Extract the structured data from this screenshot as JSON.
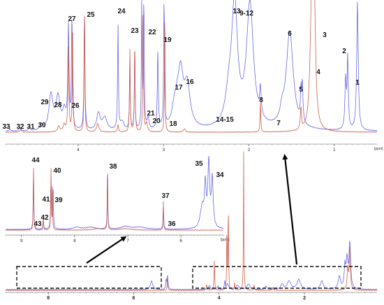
{
  "chart_data": [
    {
      "panel": "top",
      "type": "line",
      "x_unit": "[ppm]",
      "x_range": [
        4.85,
        0.5
      ],
      "x_ticks": [
        {
          "value": 4,
          "label": "4"
        },
        {
          "value": 3,
          "label": "3"
        },
        {
          "value": 2,
          "label": "2"
        },
        {
          "value": 1,
          "label": "1"
        }
      ],
      "series_colors": {
        "blue": "#6a6ae8",
        "red": "#d2614a"
      },
      "peak_labels": [
        {
          "label": "1",
          "ppm": 0.88
        },
        {
          "label": "2",
          "ppm": 0.99
        },
        {
          "label": "3",
          "ppm": 1.3
        },
        {
          "label": "4",
          "ppm": 1.33
        },
        {
          "label": "5",
          "ppm": 1.49
        },
        {
          "label": "6",
          "ppm": 1.6
        },
        {
          "label": "7",
          "ppm": 1.73
        },
        {
          "label": "8",
          "ppm": 1.95
        },
        {
          "label": "9-12",
          "ppm": 2.08
        },
        {
          "label": "13",
          "ppm": 2.3
        },
        {
          "label": "14-15",
          "ppm": 2.5
        },
        {
          "label": "16",
          "ppm": 2.73
        },
        {
          "label": "17",
          "ppm": 2.8
        },
        {
          "label": "18",
          "ppm": 2.92
        },
        {
          "label": "19",
          "ppm": 3.03
        },
        {
          "label": "20",
          "ppm": 3.13
        },
        {
          "label": "21",
          "ppm": 3.2
        },
        {
          "label": "22",
          "ppm": 3.24
        },
        {
          "label": "23",
          "ppm": 3.45
        },
        {
          "label": "24",
          "ppm": 3.55
        },
        {
          "label": "25",
          "ppm": 3.9
        },
        {
          "label": "26",
          "ppm": 4.05
        },
        {
          "label": "27",
          "ppm": 4.1
        },
        {
          "label": "28",
          "ppm": 4.3
        },
        {
          "label": "29",
          "ppm": 4.36
        },
        {
          "label": "30",
          "ppm": 4.5
        },
        {
          "label": "31",
          "ppm": 4.64
        },
        {
          "label": "32",
          "ppm": 4.72
        },
        {
          "label": "33",
          "ppm": 4.82
        }
      ]
    },
    {
      "panel": "middle",
      "type": "line",
      "x_unit": "[ppm]",
      "x_range": [
        9.3,
        5.2
      ],
      "x_ticks": [
        {
          "value": 9,
          "label": "9"
        },
        {
          "value": 8,
          "label": "8"
        },
        {
          "value": 7,
          "label": "7"
        },
        {
          "value": 6,
          "label": "6"
        }
      ],
      "series_colors": {
        "blue": "#6a6ae8",
        "red": "#d2614a"
      },
      "peak_labels": [
        {
          "label": "34",
          "ppm": 5.6
        },
        {
          "label": "35",
          "ppm": 5.7
        },
        {
          "label": "36",
          "ppm": 6.0
        },
        {
          "label": "37",
          "ppm": 6.05
        },
        {
          "label": "38",
          "ppm": 7.4
        },
        {
          "label": "39",
          "ppm": 8.4
        },
        {
          "label": "40",
          "ppm": 8.55
        },
        {
          "label": "41",
          "ppm": 8.55
        },
        {
          "label": "42",
          "ppm": 8.75
        },
        {
          "label": "43",
          "ppm": 8.9
        },
        {
          "label": "44",
          "ppm": 8.85
        }
      ]
    },
    {
      "panel": "bottom",
      "type": "line",
      "x_unit": "[ppm]",
      "x_range": [
        9.0,
        0.3
      ],
      "x_ticks": [
        {
          "value": 8,
          "label": "8"
        },
        {
          "value": 6,
          "label": "6"
        },
        {
          "value": 4,
          "label": "4"
        },
        {
          "value": 2,
          "label": "2"
        }
      ],
      "series_colors": {
        "blue": "#6a6ae8",
        "red": "#d2614a"
      },
      "zoom_regions": [
        {
          "from_ppm": 9.0,
          "to_ppm": 5.2,
          "zoom_panel": "middle"
        },
        {
          "from_ppm": 4.9,
          "to_ppm": 0.5,
          "zoom_panel": "top"
        }
      ]
    }
  ]
}
